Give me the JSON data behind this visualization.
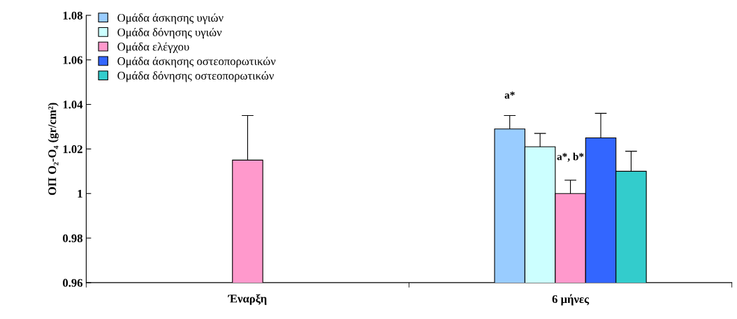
{
  "chart_data": {
    "type": "bar",
    "categories": [
      "Έναρξη",
      "6 μήνες"
    ],
    "ylabel": "ΟΠ O₂-O₄ (gr/cm²)",
    "ylim": [
      0.96,
      1.08
    ],
    "yticks": [
      0.96,
      0.98,
      1,
      1.02,
      1.04,
      1.06,
      1.08
    ],
    "series": [
      {
        "name": "Ομάδα άσκησης υγιών",
        "color": "#99ccff",
        "values": [
          null,
          1.029
        ],
        "errors": [
          null,
          0.006
        ]
      },
      {
        "name": "Ομάδα δόνησης υγιών",
        "color": "#ccffff",
        "values": [
          null,
          1.021
        ],
        "errors": [
          null,
          0.006
        ]
      },
      {
        "name": "Ομάδα ελέγχου",
        "color": "#ff99cc",
        "values": [
          1.015,
          1.0
        ],
        "errors": [
          0.02,
          0.006
        ]
      },
      {
        "name": "Ομάδα άσκησης οστεοπορωτικών",
        "color": "#3366ff",
        "values": [
          null,
          1.025
        ],
        "errors": [
          null,
          0.011
        ]
      },
      {
        "name": "Ομάδα δόνησης οστεοπορωτικών",
        "color": "#33cccc",
        "values": [
          null,
          1.01
        ],
        "errors": [
          null,
          0.009
        ]
      }
    ],
    "annotations": [
      "a*",
      "a*, b*"
    ],
    "legend": "top left",
    "grid": false
  }
}
